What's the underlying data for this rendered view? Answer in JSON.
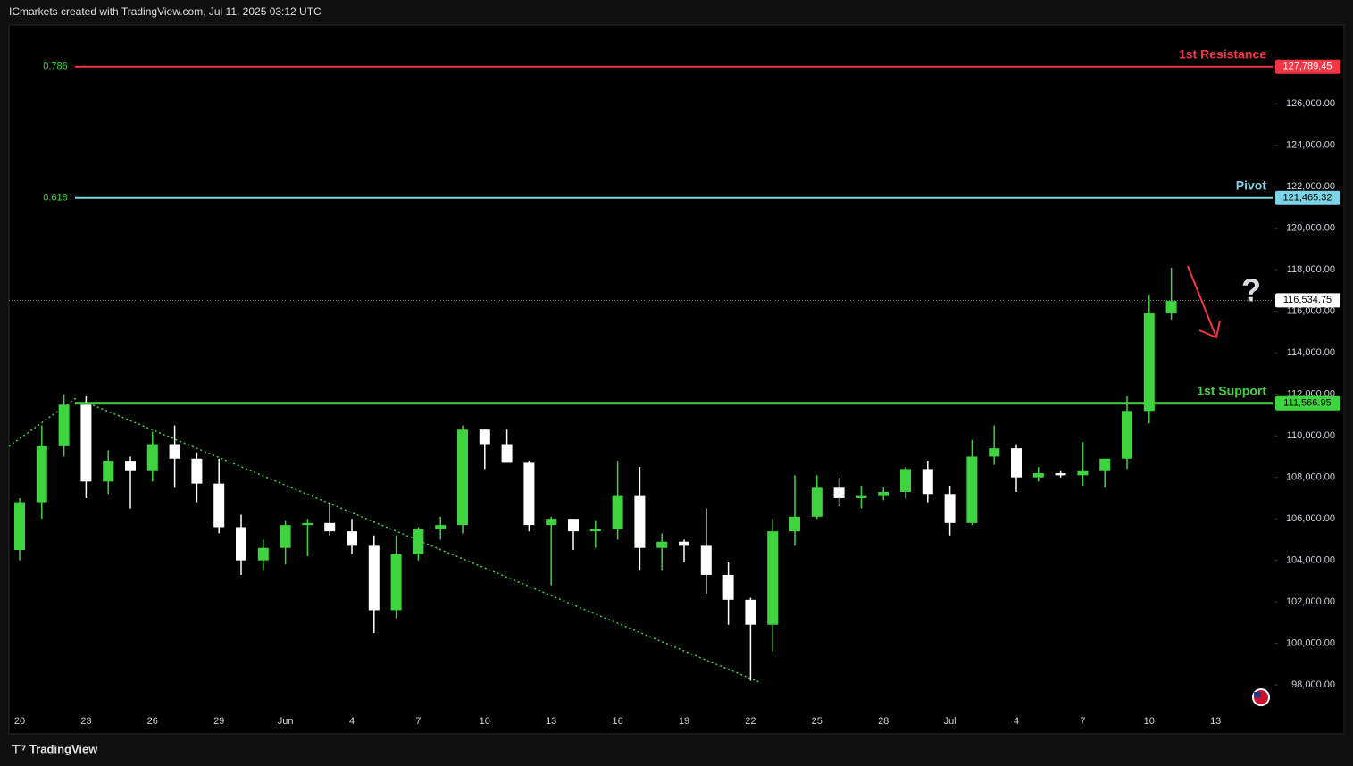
{
  "header": {
    "attribution": "ICmarkets created with TradingView.com, Jul 11, 2025 03:12 UTC"
  },
  "chart_data": {
    "type": "candlestick",
    "categories": [
      "20",
      null,
      null,
      "23",
      null,
      null,
      "26",
      null,
      null,
      "29",
      null,
      null,
      "Jun",
      null,
      null,
      "4",
      null,
      null,
      "7",
      null,
      null,
      "10",
      null,
      null,
      "13",
      null,
      null,
      "16",
      null,
      null,
      "19",
      null,
      null,
      "22",
      null,
      null,
      "25",
      null,
      null,
      "28",
      null,
      null,
      "Jul",
      null,
      null,
      "4",
      null,
      null,
      "7",
      null,
      null,
      "10",
      null,
      null,
      "13"
    ],
    "open": [
      104500,
      106800,
      109500,
      111500,
      107800,
      108800,
      108300,
      109600,
      108900,
      107700,
      105600,
      104000,
      104600,
      105700,
      105800,
      105400,
      104700,
      101600,
      104300,
      105500,
      105700,
      110300,
      109600,
      108700,
      105700,
      106000,
      105400,
      105500,
      107100,
      104600,
      104900,
      104700,
      103300,
      102100,
      100900,
      105400,
      106100,
      107500,
      107000,
      107100,
      107300,
      108400,
      107200,
      105800,
      109000,
      109400,
      108000,
      108200,
      108100,
      108300,
      108900,
      111200,
      115900,
      null,
      null
    ],
    "high": [
      107000,
      110500,
      112000,
      111900,
      109300,
      109000,
      110200,
      110500,
      109200,
      108900,
      106200,
      105000,
      105900,
      106000,
      106800,
      106000,
      105200,
      105200,
      105600,
      106100,
      110500,
      110300,
      110300,
      108800,
      106100,
      106000,
      105900,
      108800,
      108500,
      105300,
      105000,
      106500,
      103900,
      102200,
      106000,
      108100,
      108100,
      108000,
      107600,
      107500,
      108500,
      108800,
      107600,
      109800,
      110500,
      109600,
      108500,
      108300,
      109700,
      108700,
      111900,
      116800,
      118100,
      null,
      null
    ],
    "low": [
      104000,
      106000,
      109000,
      107000,
      107200,
      106500,
      107800,
      107500,
      106800,
      105300,
      103300,
      103500,
      103800,
      104200,
      105200,
      104300,
      100500,
      101200,
      104000,
      105000,
      105300,
      108400,
      108700,
      105400,
      102800,
      104500,
      104600,
      105000,
      103500,
      103500,
      103900,
      102400,
      100900,
      98200,
      99600,
      104700,
      106000,
      106600,
      106500,
      106900,
      107000,
      106800,
      105200,
      105700,
      108600,
      107300,
      107800,
      108000,
      107600,
      107500,
      108400,
      110600,
      115600,
      null,
      null
    ],
    "close": [
      106800,
      109500,
      111500,
      107800,
      108800,
      108300,
      109600,
      108900,
      107700,
      105600,
      104000,
      104600,
      105700,
      105800,
      105400,
      104700,
      101600,
      104300,
      105500,
      105700,
      110300,
      109600,
      108700,
      105700,
      106000,
      105400,
      105500,
      107100,
      104600,
      104900,
      104700,
      103300,
      102100,
      100900,
      105400,
      106100,
      107500,
      107000,
      107100,
      107300,
      108400,
      107200,
      105800,
      109000,
      109400,
      108000,
      108200,
      108100,
      108300,
      108900,
      111200,
      115900,
      116500,
      null,
      null
    ],
    "up_color": "#3fd43f",
    "down_color": "#ffffff",
    "ylim": [
      96800,
      129800
    ],
    "yticks": [
      {
        "value": 98000,
        "label": "98,000.00"
      },
      {
        "value": 100000,
        "label": "100,000.00"
      },
      {
        "value": 102000,
        "label": "102,000.00"
      },
      {
        "value": 104000,
        "label": "104,000.00"
      },
      {
        "value": 106000,
        "label": "106,000.00"
      },
      {
        "value": 108000,
        "label": "108,000.00"
      },
      {
        "value": 110000,
        "label": "110,000.00"
      },
      {
        "value": 112000,
        "label": "112,000.00"
      },
      {
        "value": 114000,
        "label": "114,000.00"
      },
      {
        "value": 116000,
        "label": "116,000.00"
      },
      {
        "value": 118000,
        "label": "118,000.00"
      },
      {
        "value": 120000,
        "label": "120,000.00"
      },
      {
        "value": 122000,
        "label": "122,000.00"
      },
      {
        "value": 124000,
        "label": "124,000.00"
      },
      {
        "value": 126000,
        "label": "126,000.00"
      }
    ],
    "levels": [
      {
        "name": "1st Resistance",
        "ratio": 0.786,
        "value": 127789.45,
        "value_label": "127,789.45",
        "color": "#f23645",
        "text_color": "#ffffff"
      },
      {
        "name": "Pivot",
        "ratio": 0.618,
        "value": 121465.32,
        "value_label": "121,465.32",
        "color": "#7ed3e6",
        "text_color": "#000000"
      },
      {
        "name": "1st Support",
        "value": 111566.95,
        "value_label": "111,566.95",
        "color": "#3fd43f",
        "text_color": "#000000"
      }
    ],
    "current_price": {
      "value": 116534.75,
      "label": "116,534.75"
    },
    "annotation": "?"
  },
  "footer": {
    "brand": "TradingView"
  }
}
